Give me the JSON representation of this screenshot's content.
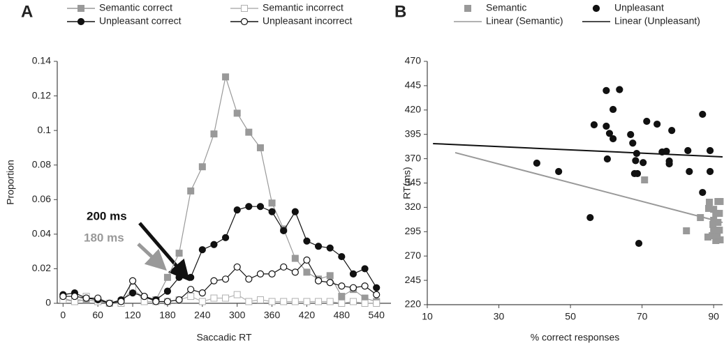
{
  "chart_data": [
    {
      "type": "line",
      "panel_label": "A",
      "x_label": "Saccadic RT",
      "y_label": "Proportion",
      "x": [
        0,
        20,
        40,
        60,
        80,
        100,
        120,
        140,
        160,
        180,
        200,
        220,
        240,
        260,
        280,
        300,
        320,
        340,
        360,
        380,
        400,
        420,
        440,
        460,
        480,
        500,
        520,
        540
      ],
      "xlim": [
        -10,
        565
      ],
      "xticks": [
        0,
        60,
        120,
        180,
        240,
        300,
        360,
        420,
        480,
        540
      ],
      "ylim": [
        0,
        0.14
      ],
      "yticks": [
        0,
        0.02,
        0.04,
        0.06,
        0.08,
        0.1,
        0.12,
        0.14
      ],
      "series": [
        {
          "name": "Semantic correct",
          "color": "#999999",
          "marker": "square",
          "filled": true,
          "values": [
            0.003,
            0.001,
            0.002,
            0.001,
            0,
            0.001,
            0.008,
            0.003,
            0.002,
            0.015,
            0.029,
            0.065,
            0.079,
            0.098,
            0.131,
            0.11,
            0.099,
            0.09,
            0.058,
            0.043,
            0.026,
            0.018,
            0.014,
            0.016,
            0.004,
            0.008,
            0.003,
            0.001
          ]
        },
        {
          "name": "Semantic incorrect",
          "color": "#b0b0b0",
          "marker": "square",
          "filled": false,
          "values": [
            0.002,
            0.001,
            0.004,
            0.001,
            0,
            0,
            0.009,
            0.001,
            0.001,
            0.001,
            0.002,
            0.004,
            0.001,
            0.003,
            0.003,
            0.005,
            0.001,
            0.002,
            0.001,
            0.001,
            0.001,
            0.001,
            0.001,
            0.001,
            0,
            0.001,
            0,
            0
          ]
        },
        {
          "name": "Unpleasant correct",
          "color": "#111111",
          "marker": "circle",
          "filled": true,
          "values": [
            0.005,
            0.006,
            0.003,
            0.002,
            0,
            0.002,
            0.006,
            0.004,
            0.002,
            0.007,
            0.015,
            0.015,
            0.031,
            0.034,
            0.038,
            0.054,
            0.056,
            0.056,
            0.053,
            0.042,
            0.053,
            0.036,
            0.033,
            0.032,
            0.027,
            0.017,
            0.02,
            0.009
          ]
        },
        {
          "name": "Unpleasant incorrect",
          "color": "#111111",
          "marker": "circle",
          "filled": false,
          "values": [
            0.004,
            0.004,
            0.003,
            0.003,
            0,
            0.001,
            0.013,
            0.004,
            0.001,
            0.001,
            0.002,
            0.008,
            0.006,
            0.013,
            0.014,
            0.021,
            0.014,
            0.017,
            0.017,
            0.021,
            0.018,
            0.025,
            0.013,
            0.012,
            0.01,
            0.009,
            0.01,
            0.005
          ]
        }
      ],
      "annotations": [
        {
          "text": "200 ms",
          "color": "#111111"
        },
        {
          "text": "180 ms",
          "color": "#999999"
        }
      ]
    },
    {
      "type": "scatter",
      "panel_label": "B",
      "x_label": "% correct responses",
      "y_label": "RT(ms)",
      "xlim": [
        10,
        92.5
      ],
      "xticks": [
        10,
        30,
        50,
        70,
        90
      ],
      "ylim": [
        220,
        470
      ],
      "yticks": [
        220,
        245,
        270,
        295,
        320,
        345,
        370,
        395,
        420,
        445,
        470
      ],
      "series": [
        {
          "name": "Semantic",
          "color": "#999999",
          "marker": "square",
          "filled": true,
          "x": [
            70.7,
            82.4,
            86.3,
            88.6,
            90,
            91.2,
            91.8,
            90.6,
            91.6,
            89.8,
            91.2,
            89.6,
            88.4,
            90.6,
            91.8,
            90,
            91.6,
            91,
            88.8,
            90
          ],
          "values": [
            348.2,
            295.9,
            309.5,
            318.9,
            318,
            326,
            326,
            313.8,
            313.8,
            302.4,
            304.5,
            290.9,
            289.5,
            285.9,
            286.6,
            296.6,
            296.6,
            290.9,
            325.3,
            306.7
          ]
        },
        {
          "name": "Unpleasant",
          "color": "#111111",
          "marker": "circle",
          "filled": true,
          "x": [
            40.6,
            46.7,
            60,
            63.7,
            61.9,
            56.6,
            60,
            60.9,
            61.9,
            66.8,
            67.4,
            68.5,
            68.2,
            70.3,
            68.7,
            67.9,
            60.3,
            71.3,
            74.2,
            78.3,
            75.6,
            76.8,
            77.6,
            77.6,
            86.9,
            82.8,
            89,
            83.2,
            89,
            86.9,
            55.5,
            69.1
          ],
          "values": [
            365.4,
            356.8,
            440,
            441,
            420.6,
            404.8,
            403.4,
            396,
            390.5,
            394.8,
            386,
            375.4,
            368,
            366,
            354.7,
            354.7,
            369.7,
            408.4,
            405.5,
            399,
            376.9,
            377.6,
            367.6,
            364.7,
            415.6,
            378.3,
            378.3,
            356.8,
            356.8,
            335.3,
            309.5,
            283
          ]
        },
        {
          "name": "Linear (Semantic)",
          "color": "#999999",
          "type": "line",
          "x": [
            17.8,
            92.5
          ],
          "values": [
            376.2,
            304.5
          ]
        },
        {
          "name": "Linear (Unpleasant)",
          "color": "#111111",
          "type": "line",
          "x": [
            11.6,
            92.5
          ],
          "values": [
            385.5,
            371.9
          ]
        }
      ]
    }
  ]
}
